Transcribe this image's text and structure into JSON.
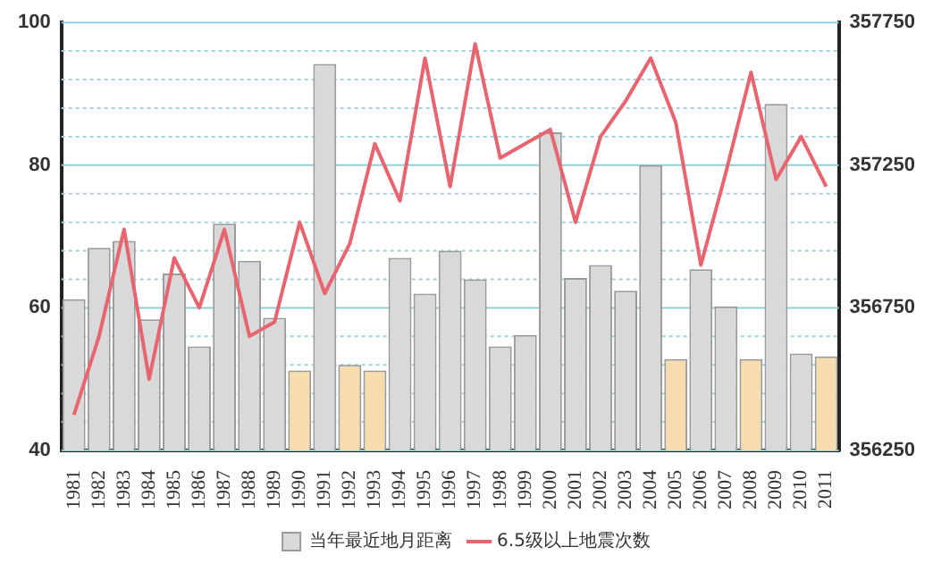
{
  "chart_data": {
    "type": "bar",
    "categories": [
      "1981",
      "1982",
      "1983",
      "1984",
      "1985",
      "1986",
      "1987",
      "1988",
      "1989",
      "1990",
      "1991",
      "1992",
      "1993",
      "1994",
      "1995",
      "1996",
      "1997",
      "1998",
      "1999",
      "2000",
      "2001",
      "2002",
      "2003",
      "2004",
      "2005",
      "2006",
      "2007",
      "2008",
      "2009",
      "2010",
      "2011"
    ],
    "series": [
      {
        "name": "当年最近地月距离",
        "axis": "y2",
        "color": "#d9d9d9",
        "colors": [
          "#d9d9d9",
          "#d9d9d9",
          "#d9d9d9",
          "#d9d9d9",
          "#d9d9d9",
          "#d9d9d9",
          "#d9d9d9",
          "#d9d9d9",
          "#d9d9d9",
          "#f7dcae",
          "#d9d9d9",
          "#f7dcae",
          "#f7dcae",
          "#d9d9d9",
          "#d9d9d9",
          "#d9d9d9",
          "#d9d9d9",
          "#d9d9d9",
          "#d9d9d9",
          "#d9d9d9",
          "#d9d9d9",
          "#d9d9d9",
          "#d9d9d9",
          "#d9d9d9",
          "#f7dcae",
          "#d9d9d9",
          "#d9d9d9",
          "#f7dcae",
          "#d9d9d9",
          "#d9d9d9",
          "#f7dcae"
        ],
        "values": [
          356780,
          356960,
          356985,
          356710,
          356870,
          356615,
          357045,
          356915,
          356715,
          356530,
          357605,
          356550,
          356530,
          356925,
          356800,
          356950,
          356850,
          356615,
          356655,
          357365,
          356855,
          356900,
          356810,
          357250,
          356570,
          356885,
          356755,
          356570,
          357465,
          356590,
          356580
        ]
      },
      {
        "name": "6.5级以上地震次数",
        "type": "line",
        "axis": "y",
        "color": "#e8646e",
        "values": [
          45,
          56,
          71,
          50,
          67,
          60,
          71,
          56,
          58,
          72,
          62,
          69,
          83,
          75,
          95,
          77,
          97,
          81,
          83,
          85,
          72,
          84,
          89,
          95,
          86,
          66,
          79,
          93,
          78,
          84,
          77
        ]
      }
    ],
    "ylim": [
      40,
      100
    ],
    "yticks": [
      40,
      {
        "value": 44,
        "label": null
      },
      {
        "value": 48,
        "label": null
      },
      {
        "value": 52,
        "label": null
      },
      {
        "value": 56,
        "label": null
      },
      60,
      {
        "value": 64,
        "label": null
      },
      {
        "value": 68,
        "label": null
      },
      {
        "value": 72,
        "label": null
      },
      {
        "value": 76,
        "label": null
      },
      80,
      {
        "value": 84,
        "label": null
      },
      {
        "value": 88,
        "label": null
      },
      {
        "value": 92,
        "label": null
      },
      {
        "value": 96,
        "label": null
      },
      100
    ],
    "y2lim": [
      356250,
      357750
    ],
    "y2ticks": [
      356250,
      356750,
      357250,
      357750
    ],
    "grid": "y",
    "legend": "bottom",
    "marker": "none",
    "line_style": "solid"
  }
}
